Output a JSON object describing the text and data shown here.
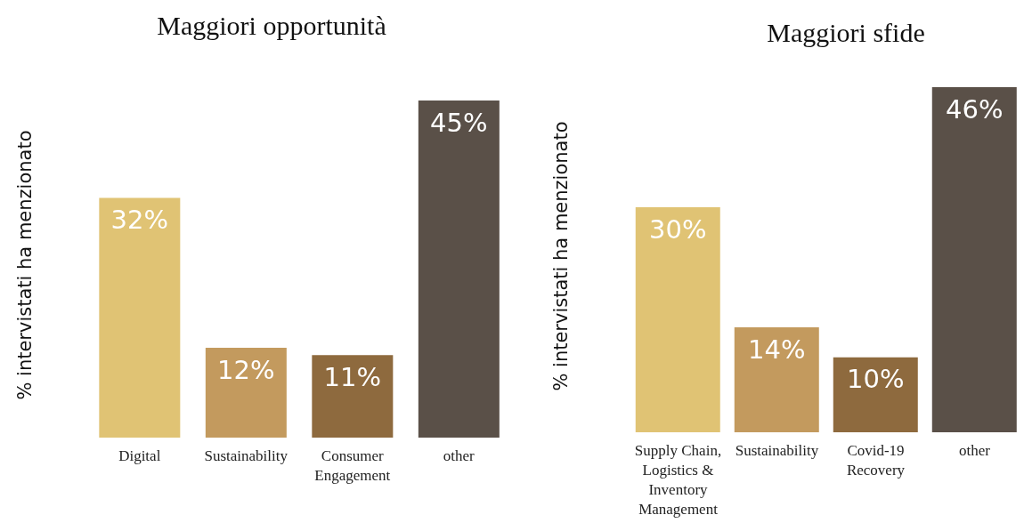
{
  "chart_data": [
    {
      "type": "bar",
      "title": "Maggiori opportunità",
      "ylabel": "% intervistati ha menzionato",
      "categories": [
        "Digital",
        "Sustainability",
        "Consumer Engagement",
        "other"
      ],
      "values": [
        32,
        12,
        11,
        45
      ],
      "value_labels": [
        "32%",
        "12%",
        "11%",
        "45%"
      ],
      "colors": [
        "#e0c374",
        "#c39a5e",
        "#8e6a3e",
        "#5a5048"
      ],
      "legend": false,
      "grid": false
    },
    {
      "type": "bar",
      "title": "Maggiori sfide",
      "ylabel": "% intervistati ha menzionato",
      "categories": [
        "Supply Chain, Logistics & Inventory Management",
        "Sustainability",
        "Covid-19 Recovery",
        "other"
      ],
      "values": [
        30,
        14,
        10,
        46
      ],
      "value_labels": [
        "30%",
        "14%",
        "10%",
        "46%"
      ],
      "colors": [
        "#e0c374",
        "#c39a5e",
        "#8e6a3e",
        "#5a5048"
      ],
      "legend": false,
      "grid": false
    }
  ]
}
